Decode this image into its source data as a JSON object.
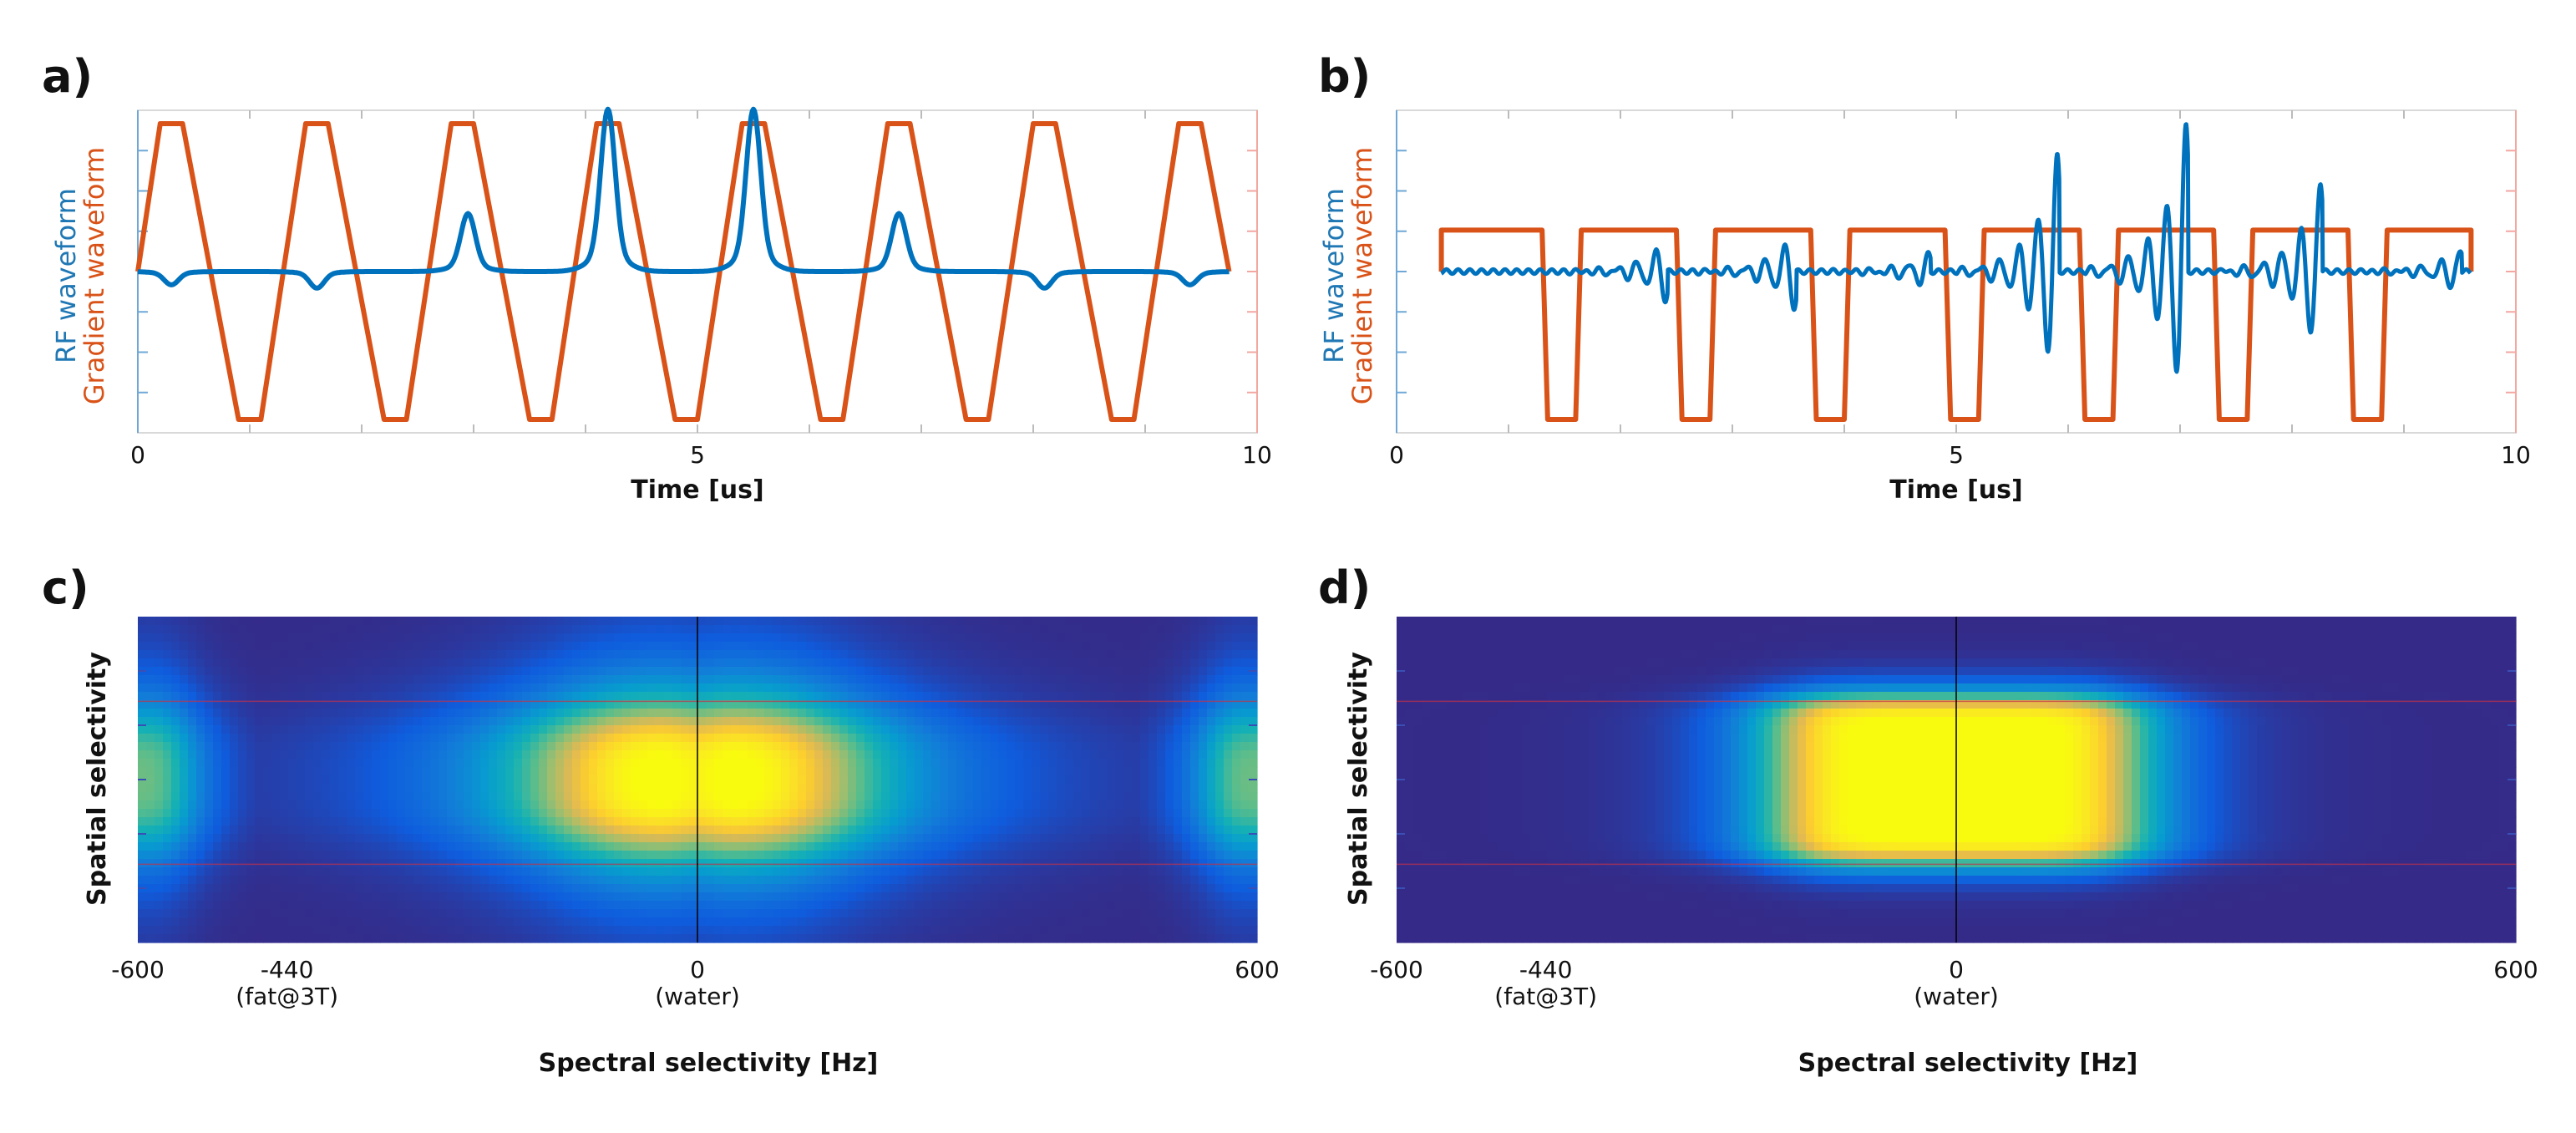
{
  "colors": {
    "rf": "#0072BD",
    "gradient": "#D95319",
    "axis": "#6fa8d6",
    "axis_right": "#f2a7a0",
    "grid": "#c8c8c8"
  },
  "panels": {
    "a": {
      "label": "a)"
    },
    "b": {
      "label": "b)"
    },
    "c": {
      "label": "c)"
    },
    "d": {
      "label": "d)"
    }
  },
  "labels": {
    "rf": "RF waveform",
    "gradient": "Gradient waveform",
    "spatial": "Spatial selectivity",
    "spectral": "Spectral selectivity [Hz]",
    "time": "Time [us]",
    "fat_note": "(fat@3T)",
    "water_note": "(water)"
  },
  "chart_data": [
    {
      "id": "a",
      "type": "line",
      "xlabel": "Time [us]",
      "ylabel_left": "RF waveform",
      "ylabel_right": "Gradient waveform",
      "xlim": [
        0,
        10
      ],
      "ylim": [
        -1,
        1
      ],
      "xticks": [
        "0",
        "5",
        "10"
      ],
      "series": [
        {
          "name": "Gradient waveform",
          "x": [
            0,
            0.2,
            0.4,
            0.9,
            1.1,
            1.5,
            1.7,
            2.2,
            2.4,
            2.8,
            3.0,
            3.5,
            3.7,
            4.1,
            4.3,
            4.8,
            5.0,
            5.4,
            5.6,
            6.1,
            6.3,
            6.7,
            6.9,
            7.4,
            7.6,
            8.0,
            8.2,
            8.7,
            8.9,
            9.3,
            9.5,
            9.75
          ],
          "values": [
            0,
            1,
            1,
            -1,
            -1,
            1,
            1,
            -1,
            -1,
            1,
            1,
            -1,
            -1,
            1,
            1,
            -1,
            -1,
            1,
            1,
            -1,
            -1,
            1,
            1,
            -1,
            -1,
            1,
            1,
            -1,
            -1,
            1,
            1,
            0
          ]
        },
        {
          "name": "RF waveform",
          "lobes": [
            {
              "center": 0.3,
              "amplitude": -0.08
            },
            {
              "center": 1.6,
              "amplitude": -0.1
            },
            {
              "center": 2.95,
              "amplitude": 0.35
            },
            {
              "center": 4.2,
              "amplitude": 0.98
            },
            {
              "center": 5.5,
              "amplitude": 0.98
            },
            {
              "center": 6.8,
              "amplitude": 0.35
            },
            {
              "center": 8.1,
              "amplitude": -0.1
            },
            {
              "center": 9.4,
              "amplitude": -0.08
            }
          ]
        }
      ]
    },
    {
      "id": "b",
      "type": "line",
      "xlabel": "Time [us]",
      "ylabel_left": "RF waveform",
      "ylabel_right": "Gradient waveform",
      "xlim": [
        0,
        10
      ],
      "ylim": [
        -1,
        1
      ],
      "xticks": [
        "0",
        "5",
        "10"
      ],
      "series": [
        {
          "name": "Gradient waveform",
          "x": [
            0.4,
            0.4,
            1.3,
            1.35,
            1.6,
            1.65,
            2.5,
            2.55,
            2.8,
            2.85,
            3.7,
            3.75,
            4.0,
            4.05,
            4.9,
            4.95,
            5.2,
            5.25,
            6.1,
            6.15,
            6.4,
            6.45,
            7.3,
            7.35,
            7.6,
            7.65,
            8.5,
            8.55,
            8.8,
            8.85,
            9.6,
            9.6
          ],
          "values": [
            0,
            0.28,
            0.28,
            -1,
            -1,
            0.28,
            0.28,
            -1,
            -1,
            0.28,
            0.28,
            -1,
            -1,
            0.28,
            0.28,
            -1,
            -1,
            0.28,
            0.28,
            -1,
            -1,
            0.28,
            0.28,
            -1,
            -1,
            0.28,
            0.28,
            -1,
            -1,
            0.28,
            0.28,
            0
          ]
        },
        {
          "name": "RF waveform",
          "bursts": [
            {
              "end": 2.4,
              "amplitude": -0.2
            },
            {
              "end": 3.55,
              "amplitude": -0.25
            },
            {
              "end": 4.75,
              "amplitude": 0.12
            },
            {
              "end": 5.9,
              "amplitude": 0.78
            },
            {
              "end": 7.05,
              "amplitude": 0.98
            },
            {
              "end": 8.25,
              "amplitude": 0.6
            },
            {
              "end": 9.5,
              "amplitude": 0.15
            }
          ]
        }
      ]
    },
    {
      "id": "c",
      "type": "heatmap",
      "xlabel": "Spectral selectivity [Hz]",
      "ylabel": "Spatial selectivity",
      "xlim": [
        -600,
        600
      ],
      "xticks": [
        {
          "value": -600,
          "label": "-600"
        },
        {
          "value": -440,
          "label": "-440",
          "note": "(fat@3T)"
        },
        {
          "value": 0,
          "label": "0",
          "note": "(water)"
        },
        {
          "value": 600,
          "label": "600"
        }
      ],
      "colormap": "parula",
      "slab": [
        0.26,
        0.76
      ],
      "peaks": [
        {
          "x": 0,
          "y": 0.5,
          "intensity": 1.0,
          "x_halfwidth": 170,
          "y_halfwidth": 0.22
        },
        {
          "x": -600,
          "y": 0.5,
          "intensity": 0.5,
          "x_halfwidth": 60,
          "y_halfwidth": 0.22
        },
        {
          "x": 600,
          "y": 0.5,
          "intensity": 0.5,
          "x_halfwidth": 60,
          "y_halfwidth": 0.22
        }
      ]
    },
    {
      "id": "d",
      "type": "heatmap",
      "xlabel": "Spectral selectivity [Hz]",
      "ylabel": "Spatial selectivity",
      "xlim": [
        -600,
        600
      ],
      "xticks": [
        {
          "value": -600,
          "label": "-600"
        },
        {
          "value": -440,
          "label": "-440",
          "note": "(fat@3T)"
        },
        {
          "value": 0,
          "label": "0",
          "note": "(water)"
        },
        {
          "value": 600,
          "label": "600"
        }
      ],
      "colormap": "parula",
      "slab": [
        0.26,
        0.76
      ],
      "peaks": [
        {
          "x": 0,
          "y": 0.5,
          "intensity": 1.0,
          "x_halfwidth": 190,
          "y_halfwidth": 0.25
        }
      ]
    }
  ]
}
